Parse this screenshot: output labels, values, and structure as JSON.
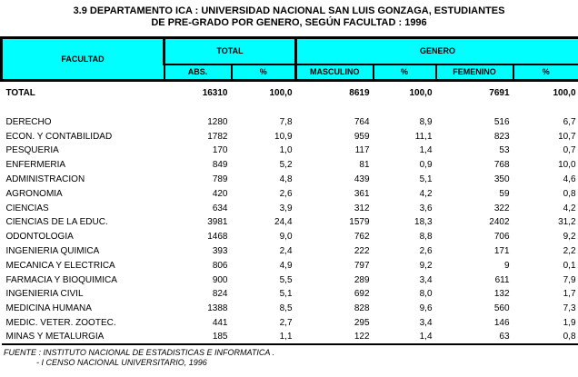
{
  "title": {
    "line1": "3.9  DEPARTAMENTO ICA : UNIVERSIDAD NACIONAL SAN LUIS GONZAGA, ESTUDIANTES",
    "line2": "DE PRE-GRADO POR GENERO, SEGÚN FACULTAD : 1996"
  },
  "table": {
    "header": {
      "facultad": "FACULTAD",
      "groups": [
        {
          "label": "TOTAL",
          "span": 2
        },
        {
          "label": "GENERO",
          "span": 4
        }
      ],
      "columns": [
        "ABS.",
        "%",
        "MASCULINO",
        "%",
        "FEMENINO",
        "%"
      ]
    },
    "total_row": {
      "label": "TOTAL",
      "values": [
        "16310",
        "100,0",
        "8619",
        "100,0",
        "7691",
        "100,0"
      ]
    },
    "rows": [
      {
        "label": "DERECHO",
        "values": [
          "1280",
          "7,8",
          "764",
          "8,9",
          "516",
          "6,7"
        ]
      },
      {
        "label": "ECON. Y CONTABILIDAD",
        "values": [
          "1782",
          "10,9",
          "959",
          "11,1",
          "823",
          "10,7"
        ]
      },
      {
        "label": "PESQUERIA",
        "values": [
          "170",
          "1,0",
          "117",
          "1,4",
          "53",
          "0,7"
        ]
      },
      {
        "label": "ENFERMERIA",
        "values": [
          "849",
          "5,2",
          "81",
          "0,9",
          "768",
          "10,0"
        ]
      },
      {
        "label": "ADMINISTRACION",
        "values": [
          "789",
          "4,8",
          "439",
          "5,1",
          "350",
          "4,6"
        ]
      },
      {
        "label": "AGRONOMIA",
        "values": [
          "420",
          "2,6",
          "361",
          "4,2",
          "59",
          "0,8"
        ]
      },
      {
        "label": "CIENCIAS",
        "values": [
          "634",
          "3,9",
          "312",
          "3,6",
          "322",
          "4,2"
        ]
      },
      {
        "label": "CIENCIAS DE LA EDUC.",
        "values": [
          "3981",
          "24,4",
          "1579",
          "18,3",
          "2402",
          "31,2"
        ]
      },
      {
        "label": "ODONTOLOGIA",
        "values": [
          "1468",
          "9,0",
          "762",
          "8,8",
          "706",
          "9,2"
        ]
      },
      {
        "label": "INGENIERIA QUIMICA",
        "values": [
          "393",
          "2,4",
          "222",
          "2,6",
          "171",
          "2,2"
        ]
      },
      {
        "label": "MECANICA Y ELECTRICA",
        "values": [
          "806",
          "4,9",
          "797",
          "9,2",
          "9",
          "0,1"
        ]
      },
      {
        "label": "FARMACIA Y BIOQUIMICA",
        "values": [
          "900",
          "5,5",
          "289",
          "3,4",
          "611",
          "7,9"
        ]
      },
      {
        "label": "INGENIERIA CIVIL",
        "values": [
          "824",
          "5,1",
          "692",
          "8,0",
          "132",
          "1,7"
        ]
      },
      {
        "label": "MEDICINA HUMANA",
        "values": [
          "1388",
          "8,5",
          "828",
          "9,6",
          "560",
          "7,3"
        ]
      },
      {
        "label": "MEDIC. VETER. ZOOTEC.",
        "values": [
          "441",
          "2,7",
          "295",
          "3,4",
          "146",
          "1,9"
        ]
      },
      {
        "label": "MINAS Y METALURGIA",
        "values": [
          "185",
          "1,1",
          "122",
          "1,4",
          "63",
          "0,8"
        ]
      }
    ]
  },
  "source": {
    "line1": "FUENTE : INSTITUTO NACIONAL DE ESTADISTICAS E INFORMATICA .",
    "line2": "- I CENSO NACIONAL UNIVERSITARIO, 1996"
  },
  "colors": {
    "header_bg": "#00ffff",
    "border": "#000000",
    "text": "#000000",
    "background": "#ffffff"
  }
}
